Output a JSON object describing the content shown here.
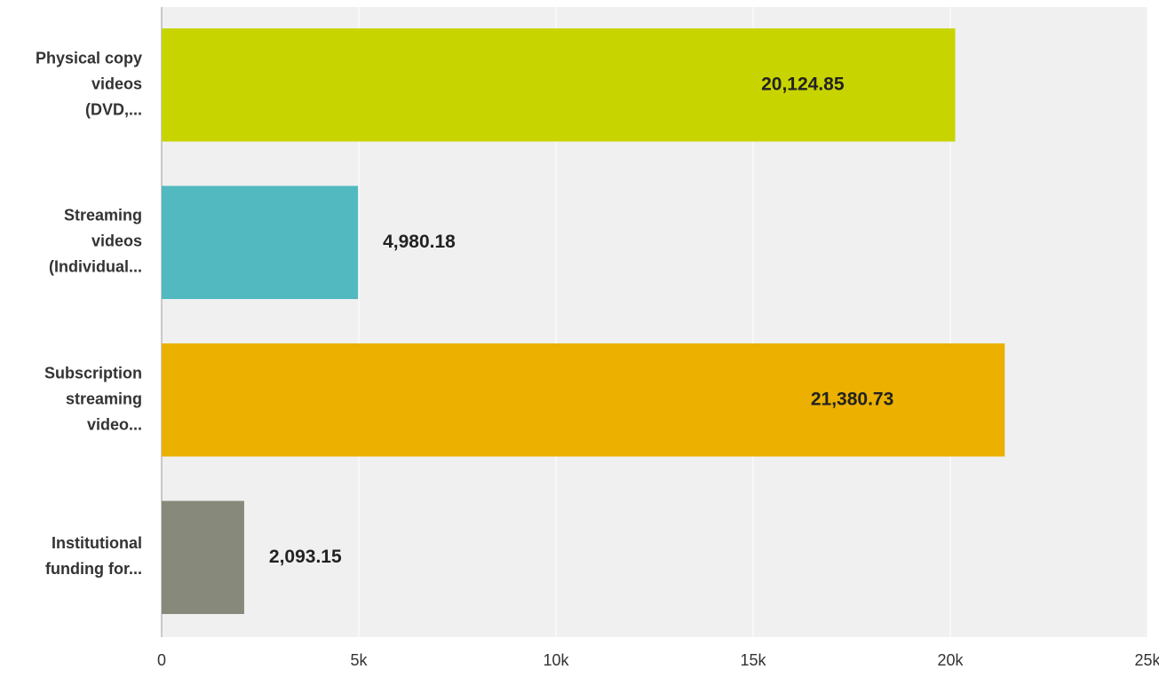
{
  "chart_data": {
    "type": "hbar",
    "categories": [
      "Physical copy videos (DVD,...",
      "Streaming videos (Individual...",
      "Subscription streaming video...",
      "Institutional funding for..."
    ],
    "values": [
      20124.85,
      4980.18,
      21380.73,
      2093.15
    ],
    "value_labels": [
      "20,124.85",
      "4,980.18",
      "21,380.73",
      "2,093.15"
    ],
    "colors": [
      "#c8d400",
      "#52b9c0",
      "#ebb000",
      "#878a7a"
    ],
    "xlim": [
      0,
      25000
    ],
    "xticks": [
      {
        "value": 0,
        "label": "0"
      },
      {
        "value": 5000,
        "label": "5k"
      },
      {
        "value": 10000,
        "label": "10k"
      },
      {
        "value": 15000,
        "label": "15k"
      },
      {
        "value": 20000,
        "label": "20k"
      },
      {
        "value": 25000,
        "label": "25k"
      }
    ],
    "grid": true
  }
}
